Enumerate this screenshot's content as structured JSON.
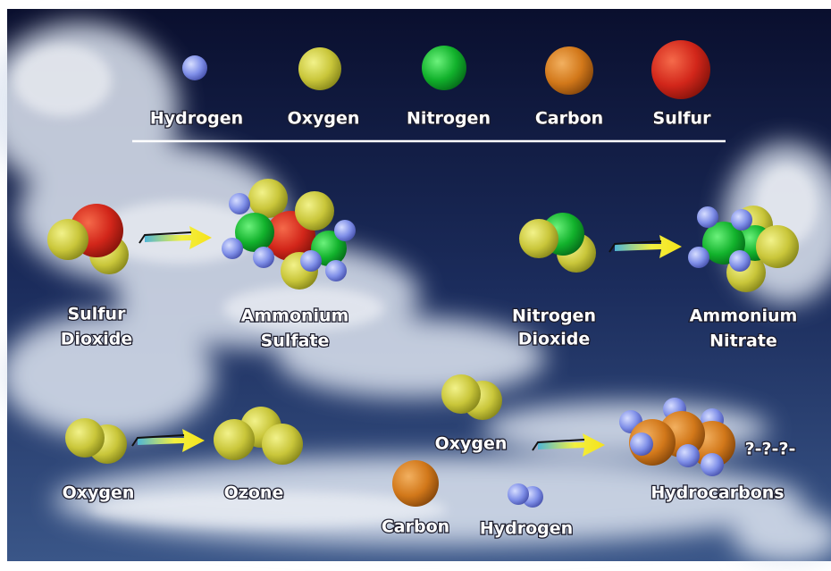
{
  "legend": [
    {
      "label": "Hydrogen"
    },
    {
      "label": "Oxygen"
    },
    {
      "label": "Nitrogen"
    },
    {
      "label": "Carbon"
    },
    {
      "label": "Sulfur"
    }
  ],
  "reactions": [
    {
      "reactant": [
        "Sulfur",
        "Dioxide"
      ],
      "product": [
        "Ammonium",
        "Sulfate"
      ]
    },
    {
      "reactant": [
        "Nitrogen",
        "Dioxide"
      ],
      "product": [
        "Ammonium",
        "Nitrate"
      ]
    },
    {
      "reactant": [
        "Oxygen"
      ],
      "product": [
        "Ozone"
      ]
    },
    {
      "reactant": [
        "Oxygen",
        "Carbon",
        "Hydrogen"
      ],
      "product": [
        "Hydrocarbons"
      ],
      "note": "?-?-?-"
    }
  ]
}
